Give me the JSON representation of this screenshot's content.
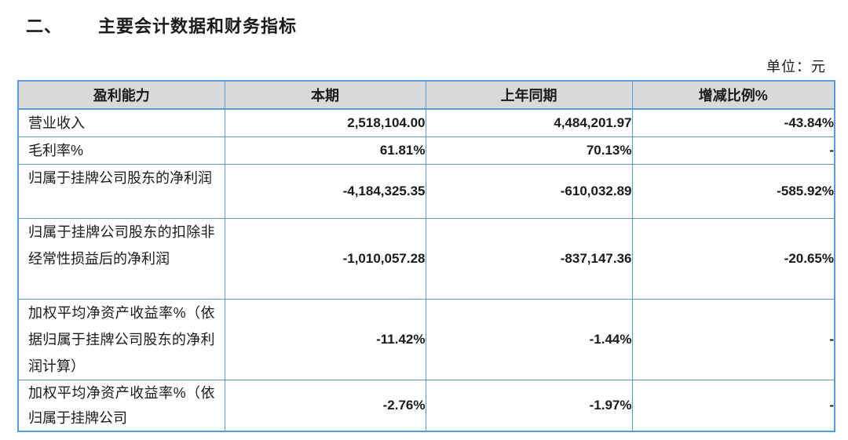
{
  "document": {
    "section_number": "二、",
    "section_title": "主要会计数据和财务指标",
    "unit_note": "单位：元"
  },
  "table": {
    "headers": [
      "盈利能力",
      "本期",
      "上年同期",
      "增减比例%"
    ],
    "rows": [
      {
        "indicator": "营业收入",
        "current_period": "2,518,104.00",
        "prior_year_period": "4,484,201.97",
        "change_ratio": "-43.84%"
      },
      {
        "indicator": "毛利率%",
        "current_period": "61.81%",
        "prior_year_period": "70.13%",
        "change_ratio": "-"
      },
      {
        "indicator": "归属于挂牌公司股东的净利润",
        "current_period": "-4,184,325.35",
        "prior_year_period": "-610,032.89",
        "change_ratio": "-585.92%"
      },
      {
        "indicator": "归属于挂牌公司股东的扣除非经常性损益后的净利润",
        "current_period": "-1,010,057.28",
        "prior_year_period": "-837,147.36",
        "change_ratio": "-20.65%"
      },
      {
        "indicator": "加权平均净资产收益率%（依据归属于挂牌公司股东的净利润计算）",
        "current_period": "-11.42%",
        "prior_year_period": "-1.44%",
        "change_ratio": "-"
      },
      {
        "indicator": "加权平均净资产收益率%（依归属于挂牌公司",
        "current_period": "-2.76%",
        "prior_year_period": "-1.97%",
        "change_ratio": "-"
      }
    ]
  },
  "colors": {
    "table_border": "#5B9BD5",
    "header_background": "#D9D9D9",
    "text": "#1A1A1A"
  }
}
